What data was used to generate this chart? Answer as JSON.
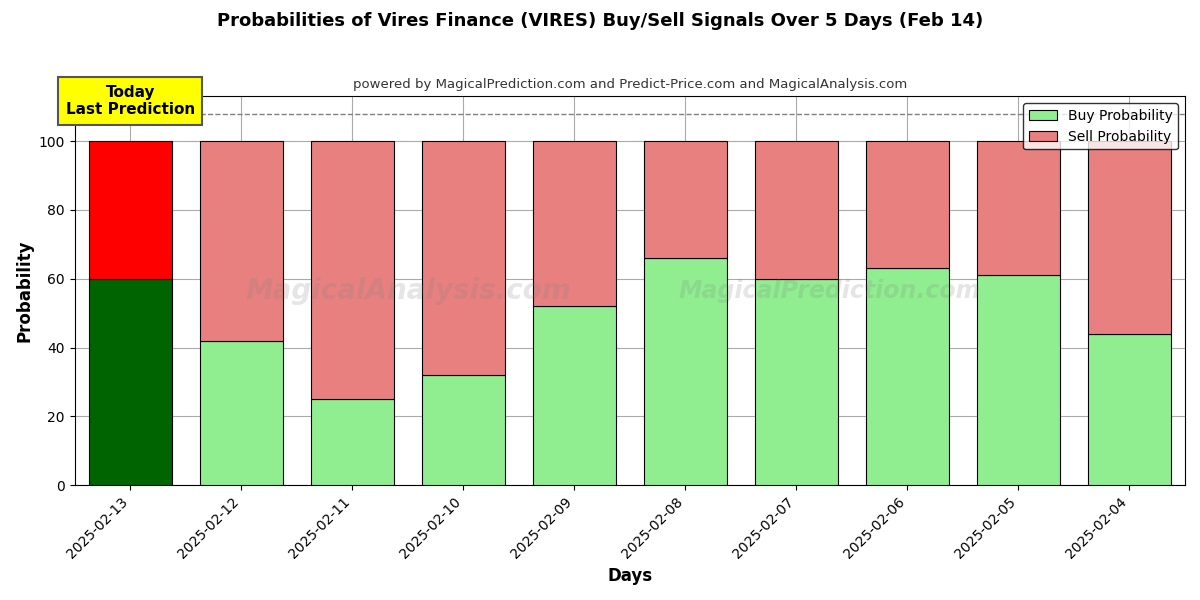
{
  "title": "Probabilities of Vires Finance (VIRES) Buy/Sell Signals Over 5 Days (Feb 14)",
  "subtitle": "powered by MagicalPrediction.com and Predict-Price.com and MagicalAnalysis.com",
  "xlabel": "Days",
  "ylabel": "Probability",
  "categories": [
    "2025-02-13",
    "2025-02-12",
    "2025-02-11",
    "2025-02-10",
    "2025-02-09",
    "2025-02-08",
    "2025-02-07",
    "2025-02-06",
    "2025-02-05",
    "2025-02-04"
  ],
  "buy_values": [
    60,
    42,
    25,
    32,
    52,
    66,
    60,
    63,
    61,
    44
  ],
  "sell_values": [
    40,
    58,
    75,
    68,
    48,
    34,
    40,
    37,
    39,
    56
  ],
  "today_buy_color": "#006400",
  "today_sell_color": "#ff0000",
  "buy_color": "#90ee90",
  "sell_color": "#e88080",
  "today_annotation": "Today\nLast Prediction",
  "ylim": [
    0,
    113
  ],
  "dashed_line_y": 108,
  "watermark_texts": [
    "MagicalAnalysis.com",
    "MagicalPrediction.com"
  ],
  "background_color": "#ffffff",
  "grid_color": "#aaaaaa",
  "bar_edge_color": "#000000",
  "legend_buy": "Buy Probability",
  "legend_sell": "Sell Probability"
}
